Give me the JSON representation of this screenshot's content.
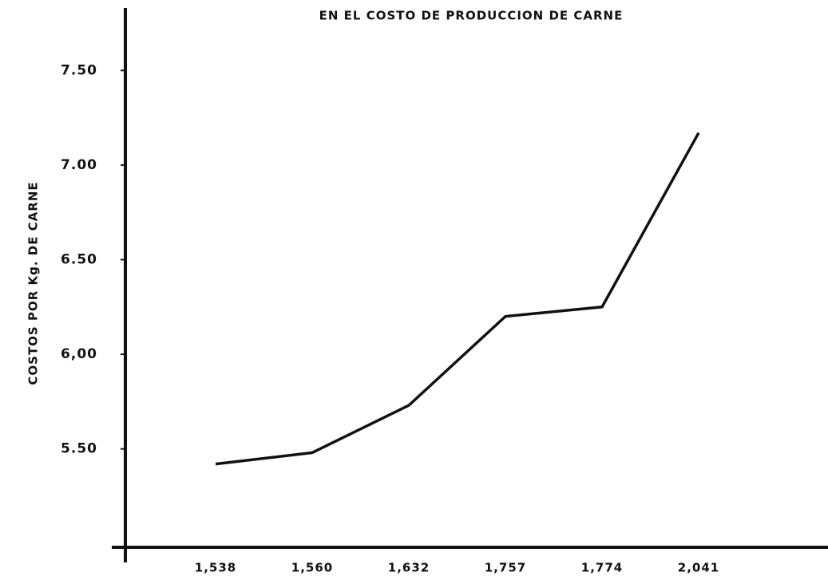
{
  "chart_data": {
    "type": "line",
    "title": "EN EL COSTO DE PRODUCCION DE CARNE",
    "y_label": "COSTOS POR Kg. DE CARNE",
    "categories": [
      "1,538",
      "1,560",
      "1,632",
      "1,757",
      "1,774",
      "2,041"
    ],
    "series": [
      {
        "color": "#111111",
        "values": [
          5.42,
          5.48,
          5.73,
          6.2,
          6.25,
          7.17
        ]
      }
    ],
    "ylim": [
      4.98,
      7.83
    ],
    "yticks": [
      {
        "value": 5.5,
        "label": "5.50"
      },
      {
        "value": 6,
        "label": "6,00"
      },
      {
        "value": 6.5,
        "label": "6.50"
      },
      {
        "value": 7,
        "label": "7.00"
      },
      {
        "value": 7.5,
        "label": "7.50"
      }
    ],
    "grid": false
  }
}
